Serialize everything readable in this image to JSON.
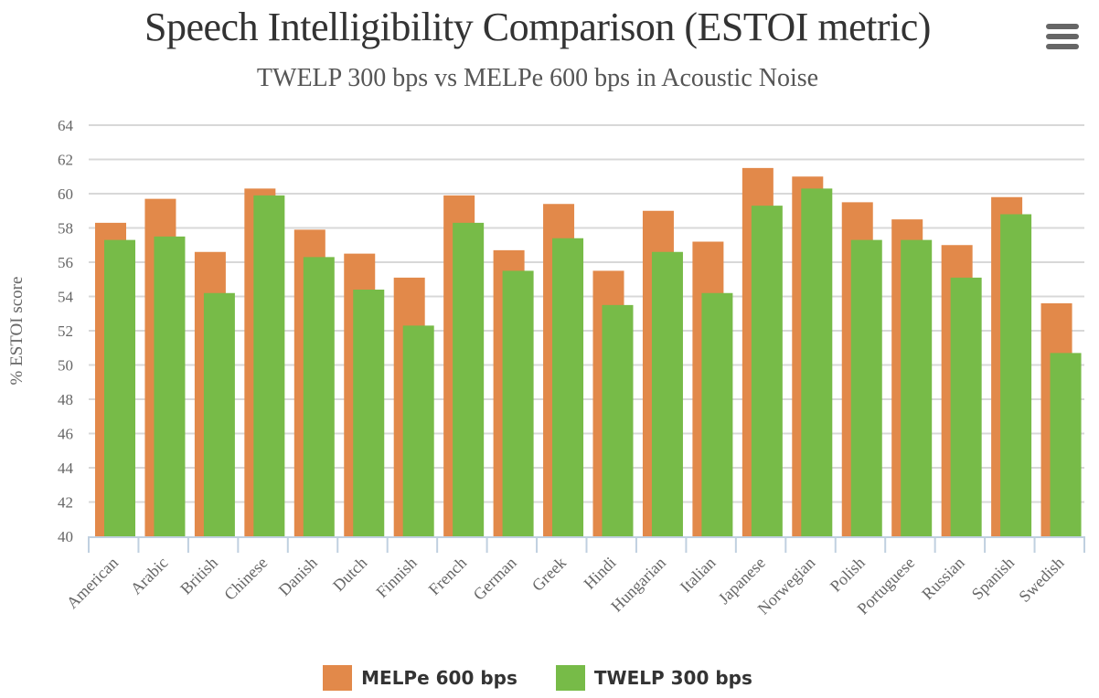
{
  "chart_data": {
    "type": "bar",
    "title": "Speech Intelligibility Comparison (ESTOI metric)",
    "subtitle": "TWELP 300 bps vs MELPe 600 bps in Acoustic Noise",
    "xlabel": "",
    "ylabel": "% ESTOI score",
    "ylim": [
      40,
      64
    ],
    "yticks": [
      40,
      42,
      44,
      46,
      48,
      50,
      52,
      54,
      56,
      58,
      60,
      62,
      64
    ],
    "grid": true,
    "legend_position": "bottom",
    "categories": [
      "American",
      "Arabic",
      "British",
      "Chinese",
      "Danish",
      "Dutch",
      "Finnish",
      "French",
      "German",
      "Greek",
      "Hindi",
      "Hungarian",
      "Italian",
      "Japanese",
      "Norwegian",
      "Polish",
      "Portuguese",
      "Russian",
      "Spanish",
      "Swedish"
    ],
    "series": [
      {
        "name": "MELPe 600 bps",
        "color": "#e2894a",
        "values": [
          58.3,
          59.7,
          56.6,
          60.3,
          57.9,
          56.5,
          55.1,
          59.9,
          56.7,
          59.4,
          55.5,
          59.0,
          57.2,
          61.5,
          61.0,
          59.5,
          58.5,
          57.0,
          59.8,
          53.6
        ]
      },
      {
        "name": "TWELP 300 bps",
        "color": "#77bb48",
        "values": [
          57.3,
          57.5,
          54.2,
          59.9,
          56.3,
          54.4,
          52.3,
          58.3,
          55.5,
          57.4,
          53.5,
          56.6,
          54.2,
          59.3,
          60.3,
          57.3,
          57.3,
          55.1,
          58.8,
          50.7
        ]
      }
    ]
  },
  "menu": {
    "icon": "hamburger-menu-icon"
  }
}
